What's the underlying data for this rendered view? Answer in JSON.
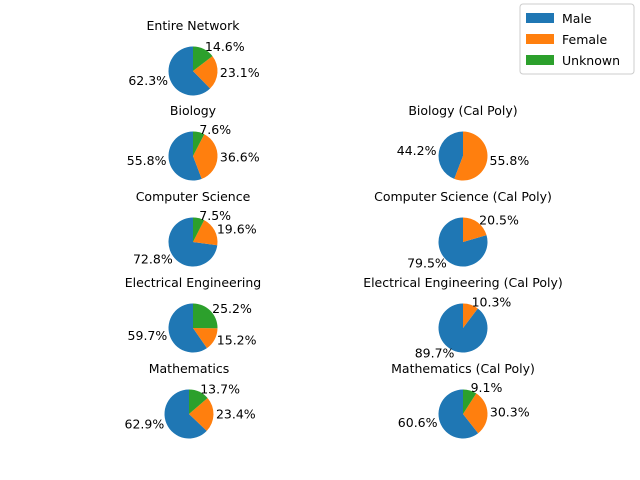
{
  "chart_data": [
    {
      "type": "pie",
      "title": "Entire Network",
      "categories": [
        "Male",
        "Female",
        "Unknown"
      ],
      "values": [
        62.3,
        23.1,
        14.6
      ],
      "labels": [
        "62.3%",
        "23.1%",
        "14.6%"
      ]
    },
    {
      "type": "pie",
      "title": "Biology",
      "categories": [
        "Male",
        "Female",
        "Unknown"
      ],
      "values": [
        55.8,
        36.6,
        7.6
      ],
      "labels": [
        "55.8%",
        "36.6%",
        "7.6%"
      ]
    },
    {
      "type": "pie",
      "title": "Biology (Cal Poly)",
      "categories": [
        "Male",
        "Female"
      ],
      "values": [
        44.2,
        55.8
      ],
      "labels": [
        "44.2%",
        "55.8%"
      ]
    },
    {
      "type": "pie",
      "title": "Computer Science",
      "categories": [
        "Male",
        "Female",
        "Unknown"
      ],
      "values": [
        72.8,
        19.6,
        7.5
      ],
      "labels": [
        "72.8%",
        "19.6%",
        "7.5%"
      ]
    },
    {
      "type": "pie",
      "title": "Computer Science (Cal Poly)",
      "categories": [
        "Male",
        "Female"
      ],
      "values": [
        79.5,
        20.5
      ],
      "labels": [
        "79.5%",
        "20.5%"
      ]
    },
    {
      "type": "pie",
      "title": "Electrical Engineering",
      "categories": [
        "Male",
        "Female",
        "Unknown"
      ],
      "values": [
        59.7,
        15.2,
        25.2
      ],
      "labels": [
        "59.7%",
        "15.2%",
        "25.2%"
      ]
    },
    {
      "type": "pie",
      "title": "Electrical Engineering (Cal Poly)",
      "categories": [
        "Male",
        "Female"
      ],
      "values": [
        89.7,
        10.3
      ],
      "labels": [
        "89.7%",
        "10.3%"
      ]
    },
    {
      "type": "pie",
      "title": "Mathematics",
      "categories": [
        "Male",
        "Female",
        "Unknown"
      ],
      "values": [
        62.9,
        23.4,
        13.7
      ],
      "labels": [
        "62.9%",
        "23.4%",
        "13.7%"
      ]
    },
    {
      "type": "pie",
      "title": "Mathematics (Cal Poly)",
      "categories": [
        "Male",
        "Female",
        "Unknown"
      ],
      "values": [
        60.6,
        30.3,
        9.1
      ],
      "labels": [
        "60.6%",
        "30.3%",
        "9.1%"
      ]
    }
  ],
  "legend": {
    "placement": "top-right",
    "entries": [
      {
        "name": "Male",
        "color": "#1f77b4"
      },
      {
        "name": "Female",
        "color": "#ff7f0e"
      },
      {
        "name": "Unknown",
        "color": "#2ca02c"
      }
    ]
  }
}
